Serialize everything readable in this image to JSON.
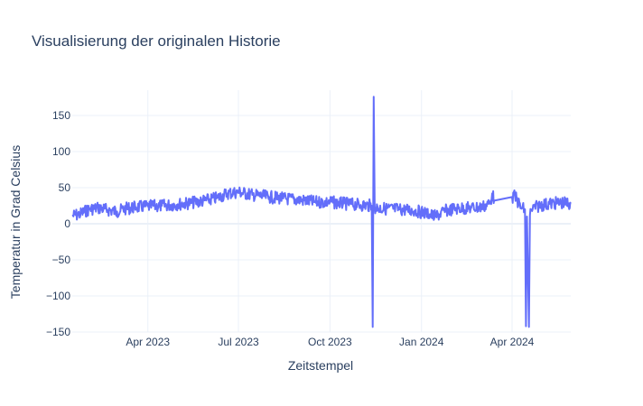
{
  "chart_data": {
    "type": "line",
    "title": "Visualisierung der originalen Historie",
    "xlabel": "Zeitstempel",
    "ylabel": "Temperatur in Grad Celsius",
    "x_range": [
      "2023-01-15",
      "2024-05-30"
    ],
    "ylim": [
      -150,
      185
    ],
    "grid": true,
    "legend": "none",
    "x_ticks": [
      {
        "date": "2023-04-01",
        "label": "Apr 2023"
      },
      {
        "date": "2023-07-01",
        "label": "Jul 2023"
      },
      {
        "date": "2023-10-01",
        "label": "Oct 2023"
      },
      {
        "date": "2024-01-01",
        "label": "Jan 2024"
      },
      {
        "date": "2024-04-01",
        "label": "Apr 2024"
      }
    ],
    "y_ticks": [
      150,
      100,
      50,
      0,
      -50,
      -100,
      -150
    ],
    "y_tick_labels": [
      "150",
      "100",
      "50",
      "0",
      "−50",
      "−100",
      "−150"
    ],
    "series": [
      {
        "color": "#636efa",
        "x": [
          "2023-01-15",
          "2023-01-22",
          "2023-02-01",
          "2023-02-10",
          "2023-02-20",
          "2023-03-01",
          "2023-03-10",
          "2023-03-20",
          "2023-04-01",
          "2023-04-15",
          "2023-05-01",
          "2023-05-15",
          "2023-06-01",
          "2023-06-10",
          "2023-06-20",
          "2023-07-01",
          "2023-07-15",
          "2023-08-01",
          "2023-08-15",
          "2023-09-01",
          "2023-09-15",
          "2023-10-01",
          "2023-10-15",
          "2023-11-01",
          "2023-11-12",
          "2023-11-13",
          "2023-11-14",
          "2023-11-15",
          "2023-11-16",
          "2023-11-25",
          "2023-12-10",
          "2023-12-25",
          "2024-01-05",
          "2024-01-15",
          "2024-01-25",
          "2024-02-05",
          "2024-02-20",
          "2024-03-01",
          "2024-03-10",
          "2024-03-12",
          "2024-03-14",
          "2024-04-01",
          "2024-04-04",
          "2024-04-10",
          "2024-04-14",
          "2024-04-15",
          "2024-04-16",
          "2024-04-18",
          "2024-04-19",
          "2024-04-20",
          "2024-04-30",
          "2024-05-10",
          "2024-05-20",
          "2024-05-30"
        ],
        "y": [
          11,
          13,
          20,
          22,
          19,
          17,
          21,
          23,
          24,
          25,
          27,
          29,
          33,
          36,
          42,
          44,
          40,
          37,
          35,
          33,
          30,
          30,
          28,
          26,
          25,
          -143,
          176,
          24,
          22,
          21,
          20,
          18,
          15,
          10,
          18,
          21,
          22,
          23,
          28,
          42,
          32,
          37,
          38,
          22,
          20,
          -142,
          10,
          -143,
          12,
          20,
          26,
          28,
          29,
          28
        ]
      }
    ]
  }
}
